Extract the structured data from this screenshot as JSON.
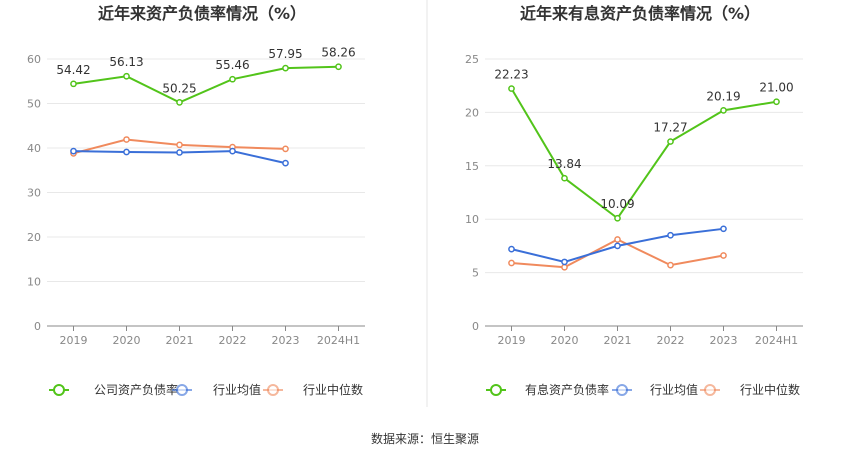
{
  "source_text": "数据来源：恒生聚源",
  "chart_data": [
    {
      "type": "line",
      "title": "近年来资产负债率情况（%）",
      "categories": [
        "2019",
        "2020",
        "2021",
        "2022",
        "2023",
        "2024H1"
      ],
      "ylim": [
        0,
        60
      ],
      "yticks": [
        0,
        10,
        20,
        30,
        40,
        50,
        60
      ],
      "grid": true,
      "legend_position": "bottom",
      "series": [
        {
          "name": "公司资产负债率",
          "color": "#52c41a",
          "values": [
            54.42,
            56.13,
            50.25,
            55.46,
            57.95,
            58.26
          ],
          "labels": [
            "54.42",
            "56.13",
            "50.25",
            "55.46",
            "57.95",
            "58.26"
          ]
        },
        {
          "name": "行业均值",
          "color": "#3a6fd8",
          "values": [
            39.3,
            39.1,
            39.0,
            39.3,
            36.6,
            null
          ]
        },
        {
          "name": "行业中位数",
          "color": "#f08a5d",
          "values": [
            38.8,
            41.9,
            40.7,
            40.2,
            39.8,
            null
          ]
        }
      ]
    },
    {
      "type": "line",
      "title": "近年来有息资产负债率情况（%）",
      "categories": [
        "2019",
        "2020",
        "2021",
        "2022",
        "2023",
        "2024H1"
      ],
      "ylim": [
        0,
        25
      ],
      "yticks": [
        0,
        5,
        10,
        15,
        20,
        25
      ],
      "grid": true,
      "legend_position": "bottom",
      "series": [
        {
          "name": "有息资产负债率",
          "color": "#52c41a",
          "values": [
            22.23,
            13.84,
            10.09,
            17.27,
            20.19,
            21.0
          ],
          "labels": [
            "22.23",
            "13.84",
            "10.09",
            "17.27",
            "20.19",
            "21.00"
          ]
        },
        {
          "name": "行业均值",
          "color": "#3a6fd8",
          "values": [
            7.2,
            6.0,
            7.5,
            8.5,
            9.1,
            null
          ]
        },
        {
          "name": "行业中位数",
          "color": "#f08a5d",
          "values": [
            5.9,
            5.5,
            8.1,
            5.7,
            6.6,
            null
          ]
        }
      ]
    }
  ]
}
